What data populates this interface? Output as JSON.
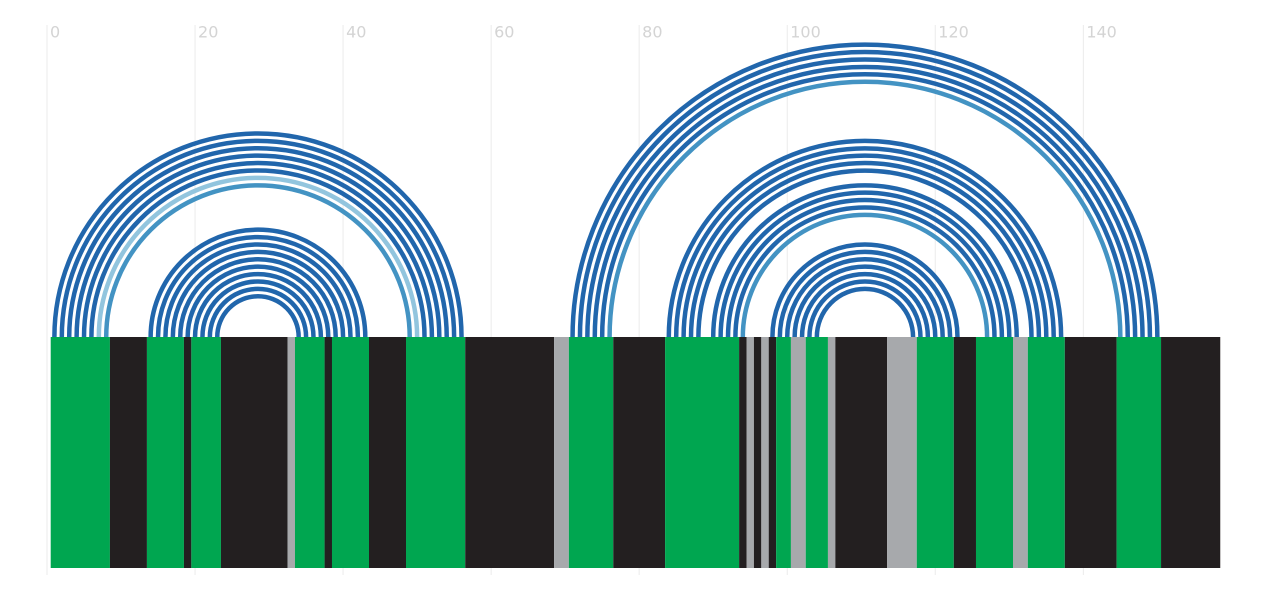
{
  "chart_data": {
    "type": "arc",
    "xlim": [
      0,
      158.6
    ],
    "xticks": [
      0,
      20,
      40,
      60,
      80,
      100,
      120,
      140
    ],
    "grid": true,
    "arcs": [
      {
        "i": 1,
        "j": 56,
        "color": "#2166ac"
      },
      {
        "i": 2,
        "j": 55,
        "color": "#2166ac"
      },
      {
        "i": 3,
        "j": 54,
        "color": "#2166ac"
      },
      {
        "i": 4,
        "j": 53,
        "color": "#2166ac"
      },
      {
        "i": 5,
        "j": 52,
        "color": "#2166ac"
      },
      {
        "i": 6,
        "j": 51,
        "color": "#2166ac"
      },
      {
        "i": 7,
        "j": 50,
        "color": "#92c5de"
      },
      {
        "i": 8,
        "j": 49,
        "color": "#4393c3"
      },
      {
        "i": 14,
        "j": 43,
        "color": "#2166ac"
      },
      {
        "i": 15,
        "j": 42,
        "color": "#2166ac"
      },
      {
        "i": 16,
        "j": 41,
        "color": "#2166ac"
      },
      {
        "i": 17,
        "j": 40,
        "color": "#2166ac"
      },
      {
        "i": 18,
        "j": 39,
        "color": "#2166ac"
      },
      {
        "i": 19,
        "j": 38,
        "color": "#2166ac"
      },
      {
        "i": 20,
        "j": 37,
        "color": "#2166ac"
      },
      {
        "i": 21,
        "j": 36,
        "color": "#2166ac"
      },
      {
        "i": 22,
        "j": 35,
        "color": "#2166ac"
      },
      {
        "i": 23,
        "j": 34,
        "color": "#2166ac"
      },
      {
        "i": 71,
        "j": 150,
        "color": "#2166ac"
      },
      {
        "i": 72,
        "j": 149,
        "color": "#2166ac"
      },
      {
        "i": 73,
        "j": 148,
        "color": "#2166ac"
      },
      {
        "i": 74,
        "j": 147,
        "color": "#2166ac"
      },
      {
        "i": 75,
        "j": 146,
        "color": "#2166ac"
      },
      {
        "i": 76,
        "j": 145,
        "color": "#4393c3"
      },
      {
        "i": 84,
        "j": 137,
        "color": "#2166ac"
      },
      {
        "i": 85,
        "j": 136,
        "color": "#2166ac"
      },
      {
        "i": 86,
        "j": 135,
        "color": "#2166ac"
      },
      {
        "i": 87,
        "j": 134,
        "color": "#2166ac"
      },
      {
        "i": 88,
        "j": 133,
        "color": "#2166ac"
      },
      {
        "i": 90,
        "j": 131,
        "color": "#2166ac"
      },
      {
        "i": 91,
        "j": 130,
        "color": "#2166ac"
      },
      {
        "i": 92,
        "j": 129,
        "color": "#2166ac"
      },
      {
        "i": 93,
        "j": 128,
        "color": "#2166ac"
      },
      {
        "i": 94,
        "j": 127,
        "color": "#4393c3"
      },
      {
        "i": 98,
        "j": 123,
        "color": "#2166ac"
      },
      {
        "i": 99,
        "j": 122,
        "color": "#2166ac"
      },
      {
        "i": 100,
        "j": 121,
        "color": "#2166ac"
      },
      {
        "i": 101,
        "j": 120,
        "color": "#2166ac"
      },
      {
        "i": 102,
        "j": 119,
        "color": "#2166ac"
      },
      {
        "i": 103,
        "j": 118,
        "color": "#2166ac"
      },
      {
        "i": 104,
        "j": 117,
        "color": "#2166ac"
      }
    ],
    "bands": [
      {
        "start": 0.5,
        "end": 8.5,
        "color": "#00a650"
      },
      {
        "start": 8.5,
        "end": 13.5,
        "color": "#231f20"
      },
      {
        "start": 13.5,
        "end": 18.5,
        "color": "#00a650"
      },
      {
        "start": 18.5,
        "end": 19.5,
        "color": "#231f20"
      },
      {
        "start": 19.5,
        "end": 23.5,
        "color": "#00a650"
      },
      {
        "start": 23.5,
        "end": 32.5,
        "color": "#231f20"
      },
      {
        "start": 32.5,
        "end": 33.5,
        "color": "#a7a9ac"
      },
      {
        "start": 33.5,
        "end": 37.5,
        "color": "#00a650"
      },
      {
        "start": 37.5,
        "end": 38.5,
        "color": "#231f20"
      },
      {
        "start": 38.5,
        "end": 43.5,
        "color": "#00a650"
      },
      {
        "start": 43.5,
        "end": 48.5,
        "color": "#231f20"
      },
      {
        "start": 48.5,
        "end": 56.5,
        "color": "#00a650"
      },
      {
        "start": 56.5,
        "end": 68.5,
        "color": "#231f20"
      },
      {
        "start": 68.5,
        "end": 70.5,
        "color": "#a7a9ac"
      },
      {
        "start": 70.5,
        "end": 76.5,
        "color": "#00a650"
      },
      {
        "start": 76.5,
        "end": 83.5,
        "color": "#231f20"
      },
      {
        "start": 83.5,
        "end": 93.5,
        "color": "#00a650"
      },
      {
        "start": 93.5,
        "end": 94.5,
        "color": "#231f20"
      },
      {
        "start": 94.5,
        "end": 95.5,
        "color": "#a7a9ac"
      },
      {
        "start": 95.5,
        "end": 96.5,
        "color": "#231f20"
      },
      {
        "start": 96.5,
        "end": 97.5,
        "color": "#a7a9ac"
      },
      {
        "start": 97.5,
        "end": 98.5,
        "color": "#231f20"
      },
      {
        "start": 98.5,
        "end": 100.5,
        "color": "#00a650"
      },
      {
        "start": 100.5,
        "end": 102.5,
        "color": "#a7a9ac"
      },
      {
        "start": 102.5,
        "end": 105.5,
        "color": "#00a650"
      },
      {
        "start": 105.5,
        "end": 106.5,
        "color": "#a7a9ac"
      },
      {
        "start": 106.5,
        "end": 113.5,
        "color": "#231f20"
      },
      {
        "start": 113.5,
        "end": 117.5,
        "color": "#a7a9ac"
      },
      {
        "start": 117.5,
        "end": 122.5,
        "color": "#00a650"
      },
      {
        "start": 122.5,
        "end": 125.5,
        "color": "#231f20"
      },
      {
        "start": 125.5,
        "end": 130.5,
        "color": "#00a650"
      },
      {
        "start": 130.5,
        "end": 132.5,
        "color": "#a7a9ac"
      },
      {
        "start": 132.5,
        "end": 137.5,
        "color": "#00a650"
      },
      {
        "start": 137.5,
        "end": 144.5,
        "color": "#231f20"
      },
      {
        "start": 144.5,
        "end": 150.5,
        "color": "#00a650"
      },
      {
        "start": 150.5,
        "end": 158.5,
        "color": "#231f20"
      }
    ]
  }
}
